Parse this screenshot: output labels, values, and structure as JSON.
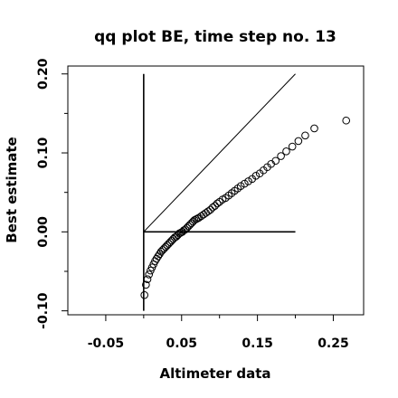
{
  "chart_data": {
    "type": "scatter",
    "title": "qq plot BE, time step no. 13",
    "xlabel": "Altimeter data",
    "ylabel": "Best estimate",
    "xlim": [
      -0.1,
      0.29
    ],
    "ylim": [
      -0.105,
      0.21
    ],
    "xticks": [
      -0.05,
      0.05,
      0.15,
      0.25
    ],
    "xtick_labels": [
      "-0.05",
      "0.05",
      "0.15",
      "0.25"
    ],
    "yticks": [
      -0.1,
      0.0,
      0.1,
      0.2
    ],
    "ytick_labels": [
      "-0.10",
      "0.00",
      "0.10",
      "0.20"
    ],
    "minor_xticks": [
      0.0,
      0.1,
      0.2
    ],
    "minor_yticks": [
      -0.05,
      0.05,
      0.15
    ],
    "reference_lines": [
      {
        "kind": "identity",
        "from": [
          0.0,
          0.0
        ],
        "to": [
          0.2,
          0.2
        ]
      },
      {
        "kind": "vertical",
        "from": [
          0.0,
          -0.1
        ],
        "to": [
          0.0,
          0.2
        ]
      },
      {
        "kind": "horizontal",
        "from": [
          0.0,
          0.0
        ],
        "to": [
          0.2,
          0.0
        ]
      }
    ],
    "marker": "open-circle",
    "grid": false,
    "x": [
      0.001,
      0.003,
      0.005,
      0.007,
      0.009,
      0.011,
      0.013,
      0.015,
      0.017,
      0.019,
      0.021,
      0.023,
      0.025,
      0.027,
      0.029,
      0.031,
      0.033,
      0.035,
      0.037,
      0.039,
      0.041,
      0.043,
      0.045,
      0.047,
      0.049,
      0.051,
      0.053,
      0.055,
      0.057,
      0.059,
      0.061,
      0.063,
      0.065,
      0.067,
      0.069,
      0.071,
      0.073,
      0.076,
      0.079,
      0.082,
      0.085,
      0.088,
      0.091,
      0.094,
      0.097,
      0.1,
      0.104,
      0.108,
      0.112,
      0.116,
      0.12,
      0.124,
      0.128,
      0.133,
      0.138,
      0.143,
      0.148,
      0.153,
      0.158,
      0.163,
      0.168,
      0.174,
      0.181,
      0.188,
      0.196,
      0.204,
      0.213,
      0.225,
      0.267
    ],
    "y": [
      -0.08,
      -0.067,
      -0.06,
      -0.054,
      -0.049,
      -0.045,
      -0.041,
      -0.037,
      -0.034,
      -0.031,
      -0.028,
      -0.025,
      -0.023,
      -0.021,
      -0.019,
      -0.017,
      -0.015,
      -0.013,
      -0.011,
      -0.009,
      -0.007,
      -0.006,
      -0.004,
      -0.002,
      -0.001,
      0.0,
      0.002,
      0.003,
      0.005,
      0.007,
      0.009,
      0.011,
      0.013,
      0.015,
      0.016,
      0.017,
      0.018,
      0.02,
      0.022,
      0.024,
      0.026,
      0.028,
      0.031,
      0.033,
      0.036,
      0.038,
      0.041,
      0.043,
      0.046,
      0.049,
      0.052,
      0.055,
      0.058,
      0.061,
      0.064,
      0.067,
      0.071,
      0.074,
      0.078,
      0.082,
      0.086,
      0.09,
      0.096,
      0.102,
      0.108,
      0.115,
      0.122,
      0.131,
      0.141
    ]
  }
}
